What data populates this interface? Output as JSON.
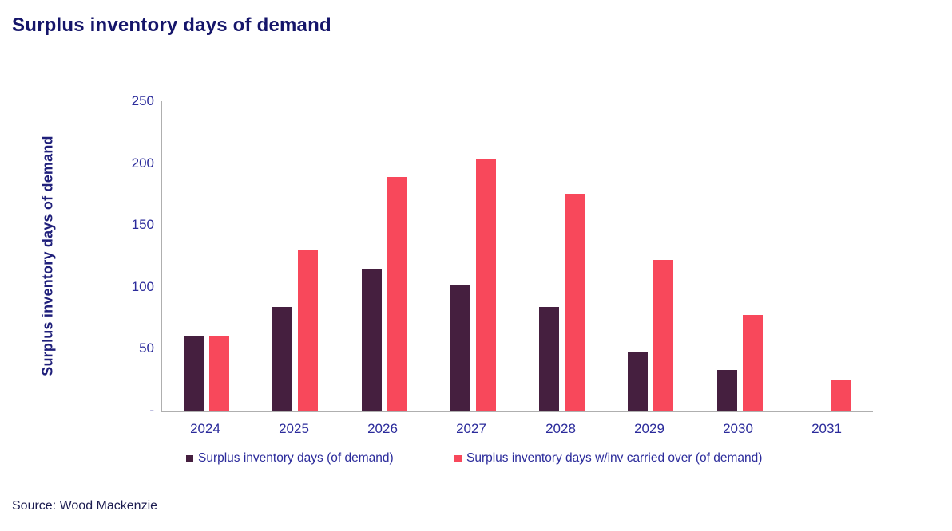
{
  "title": "Surplus inventory days of demand",
  "source": "Source: Wood Mackenzie",
  "colors": {
    "series_dark": "#451F3F",
    "series_pink": "#F8485B",
    "axis_line": "#AFAFAF",
    "title_text": "#15156A",
    "axis_text": "#2B2B9B",
    "y_axis_title_text": "#1F1F7A",
    "source_text": "#1C1C50"
  },
  "chart_data": {
    "type": "bar",
    "title": "Surplus inventory days of demand",
    "categories": [
      "2024",
      "2025",
      "2026",
      "2027",
      "2028",
      "2029",
      "2030",
      "2031"
    ],
    "series": [
      {
        "name": "Surplus inventory days (of demand)",
        "color": "#451F3F",
        "values": [
          60,
          84,
          114,
          102,
          84,
          48,
          33,
          0
        ]
      },
      {
        "name": "Surplus inventory days w/inv carried over (of demand)",
        "color": "#F8485B",
        "values": [
          60,
          130,
          189,
          203,
          175,
          122,
          77,
          25
        ]
      }
    ],
    "xlabel": "",
    "ylabel": "Surplus inventory days of demand",
    "ylim": [
      0,
      250
    ],
    "yticks": [
      {
        "value": 250,
        "label": "250"
      },
      {
        "value": 200,
        "label": "200"
      },
      {
        "value": 150,
        "label": "150"
      },
      {
        "value": 100,
        "label": "100"
      },
      {
        "value": 50,
        "label": "50"
      },
      {
        "value": 0,
        "label": "-"
      }
    ],
    "grid": false,
    "legend_position": "bottom"
  }
}
